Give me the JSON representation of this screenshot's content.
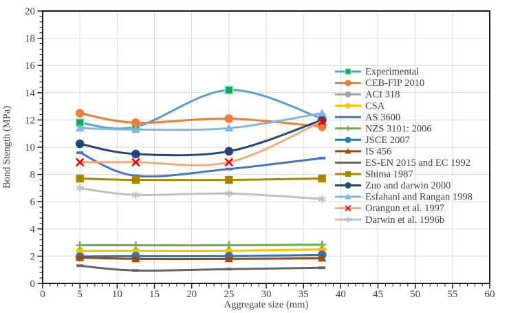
{
  "chart_data": {
    "type": "line",
    "title": "",
    "x_axis": {
      "title": "Aggregate size (mm)",
      "min": 0,
      "max": 60,
      "major": 5,
      "minor": 1,
      "tick_labels": [
        "0",
        "5",
        "10",
        "15",
        "20",
        "25",
        "30",
        "35",
        "40",
        "45",
        "50",
        "55",
        "60"
      ]
    },
    "y_axis": {
      "title": "Bond Stength (MPa)",
      "min": 0,
      "max": 20,
      "major": 2,
      "minor": 0.4,
      "tick_labels": [
        "0",
        "2",
        "4",
        "6",
        "8",
        "10",
        "12",
        "14",
        "16",
        "18",
        "20"
      ]
    },
    "grid": true,
    "gridline_color": "#D9D9D9",
    "axis_text_color": "#404040",
    "border_color": "#000000",
    "legend_position": "inside-right",
    "x": [
      5,
      12.5,
      25,
      37.5
    ],
    "series": [
      {
        "name": "Experimental",
        "values": [
          11.8,
          11.5,
          14.2,
          12.1
        ],
        "color": "#5B9BD5",
        "marker": "square",
        "marker_color": "#00B050",
        "marker_halo": "#BDD7EE"
      },
      {
        "name": "CEB-FIP 2010",
        "values": [
          12.5,
          11.8,
          12.1,
          11.5
        ],
        "color": "#ED7D31",
        "marker": "circle"
      },
      {
        "name": "ACI 318",
        "values": [
          2.0,
          2.0,
          2.0,
          2.1
        ],
        "color": "#A5A5A5",
        "marker": "circle"
      },
      {
        "name": "CSA",
        "values": [
          2.4,
          2.4,
          2.4,
          2.5
        ],
        "color": "#FFC000",
        "marker": "diamond"
      },
      {
        "name": "AS 3600",
        "values": [
          9.6,
          7.9,
          8.4,
          9.2
        ],
        "color": "#4472C4",
        "marker": "dash"
      },
      {
        "name": "NZS 3101: 2006",
        "values": [
          2.8,
          2.8,
          2.8,
          2.85
        ],
        "color": "#70AD47",
        "marker": "plus"
      },
      {
        "name": "JSCE 2007",
        "values": [
          1.95,
          2.0,
          2.0,
          2.1
        ],
        "color": "#2E75B6",
        "marker": "circle"
      },
      {
        "name": "IS 456",
        "values": [
          1.9,
          1.8,
          1.8,
          1.85
        ],
        "color": "#9E480E",
        "marker": "triangle"
      },
      {
        "name": "ES-EN 2015 and EC 1992",
        "values": [
          1.3,
          0.95,
          1.05,
          1.15
        ],
        "color": "#636363",
        "marker": "dash"
      },
      {
        "name": "Shima 1987",
        "values": [
          7.7,
          7.6,
          7.6,
          7.7
        ],
        "color": "#A98600",
        "marker": "square"
      },
      {
        "name": "Zuo and darwin 2000",
        "values": [
          10.25,
          9.5,
          9.7,
          12.0
        ],
        "color": "#264478",
        "marker": "circle"
      },
      {
        "name": "Esfahani and Rangan 1998",
        "values": [
          11.4,
          11.3,
          11.4,
          12.5
        ],
        "color": "#85B3E0",
        "marker": "triangle"
      },
      {
        "name": "Orangun et al. 1997",
        "values": [
          8.9,
          8.9,
          8.9,
          11.9
        ],
        "color": "#F4A97C",
        "marker": "x",
        "marker_color": "#FF0000"
      },
      {
        "name": "Darwin et al. 1996b",
        "values": [
          7.0,
          6.5,
          6.6,
          6.2
        ],
        "color": "#BFBFBF",
        "marker": "asterisk"
      }
    ]
  }
}
